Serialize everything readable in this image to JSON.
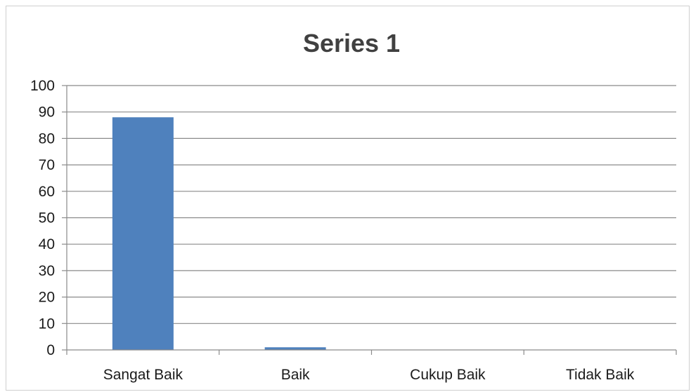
{
  "chart_data": {
    "type": "bar",
    "title": "Series 1",
    "xlabel": "",
    "ylabel": "",
    "categories": [
      "Sangat Baik",
      "Baik",
      "Cukup Baik",
      "Tidak Baik"
    ],
    "series": [
      {
        "values": [
          88,
          1,
          0,
          0
        ],
        "color": "#4f81bd"
      }
    ],
    "ylim": [
      0,
      100
    ],
    "yticks": [
      "0",
      "10",
      "20",
      "30",
      "40",
      "50",
      "60",
      "70",
      "80",
      "90",
      "100"
    ],
    "grid": true,
    "legend": "none"
  }
}
